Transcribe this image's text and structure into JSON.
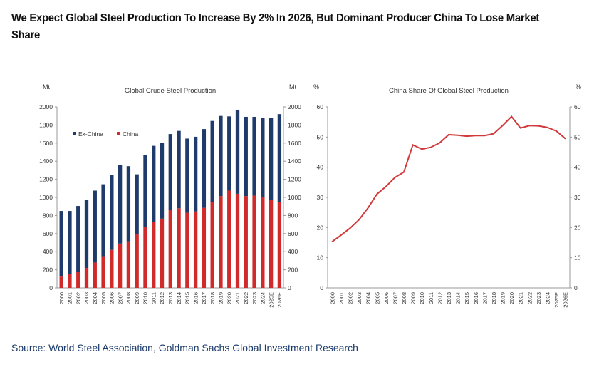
{
  "title": "We Expect Global Steel Production To Increase By 2% In 2026, But Dominant Producer China To Lose Market Share",
  "source": "Source: World Steel Association, Goldman Sachs Global Investment Research",
  "colors": {
    "ex_china": "#1f3b6b",
    "china": "#d02a2a",
    "line": "#d03a3a"
  },
  "chart_data": [
    {
      "type": "bar",
      "stacked": true,
      "title": "Global Crude Steel Production",
      "ylabel_left": "Mt",
      "ylabel_right": "Mt",
      "ylim": [
        0,
        2000
      ],
      "yticks": [
        0,
        200,
        400,
        600,
        800,
        1000,
        1200,
        1400,
        1600,
        1800,
        2000
      ],
      "legend": "top-left",
      "categories": [
        "2000",
        "2001",
        "2002",
        "2003",
        "2004",
        "2005",
        "2006",
        "2007",
        "2008",
        "2009",
        "2010",
        "2011",
        "2012",
        "2013",
        "2014",
        "2015",
        "2016",
        "2017",
        "2018",
        "2019",
        "2020",
        "2021",
        "2022",
        "2023",
        "2024",
        "2025E",
        "2026E"
      ],
      "series": [
        {
          "name": "Ex-China",
          "values": [
            725,
            700,
            725,
            755,
            795,
            795,
            830,
            865,
            830,
            665,
            795,
            845,
            840,
            835,
            855,
            820,
            825,
            870,
            895,
            885,
            820,
            925,
            875,
            870,
            880,
            905,
            970
          ]
        },
        {
          "name": "China",
          "values": [
            125,
            150,
            180,
            220,
            280,
            350,
            420,
            490,
            515,
            590,
            675,
            725,
            765,
            865,
            880,
            830,
            845,
            885,
            950,
            1015,
            1075,
            1040,
            1015,
            1020,
            1000,
            975,
            950
          ]
        }
      ]
    },
    {
      "type": "line",
      "title": "China Share Of Global Steel Production",
      "ylabel_left": "%",
      "ylabel_right": "%",
      "ylim": [
        0,
        60
      ],
      "yticks": [
        0,
        10,
        20,
        30,
        40,
        50,
        60
      ],
      "categories": [
        "2000",
        "2001",
        "2002",
        "2003",
        "2004",
        "2005",
        "2006",
        "2007",
        "2008",
        "2009",
        "2010",
        "2011",
        "2012",
        "2013",
        "2014",
        "2015",
        "2016",
        "2017",
        "2018",
        "2019",
        "2020",
        "2021",
        "2022",
        "2023",
        "2024",
        "2025E",
        "2026E"
      ],
      "series": [
        {
          "name": "China share",
          "values": [
            15.3,
            17.5,
            19.8,
            22.6,
            26.5,
            31.1,
            33.6,
            36.6,
            38.4,
            47.4,
            46.0,
            46.6,
            48.1,
            50.8,
            50.6,
            50.3,
            50.5,
            50.5,
            51.1,
            53.8,
            56.8,
            53.0,
            53.8,
            53.7,
            53.2,
            52.0,
            49.5
          ]
        }
      ]
    }
  ]
}
